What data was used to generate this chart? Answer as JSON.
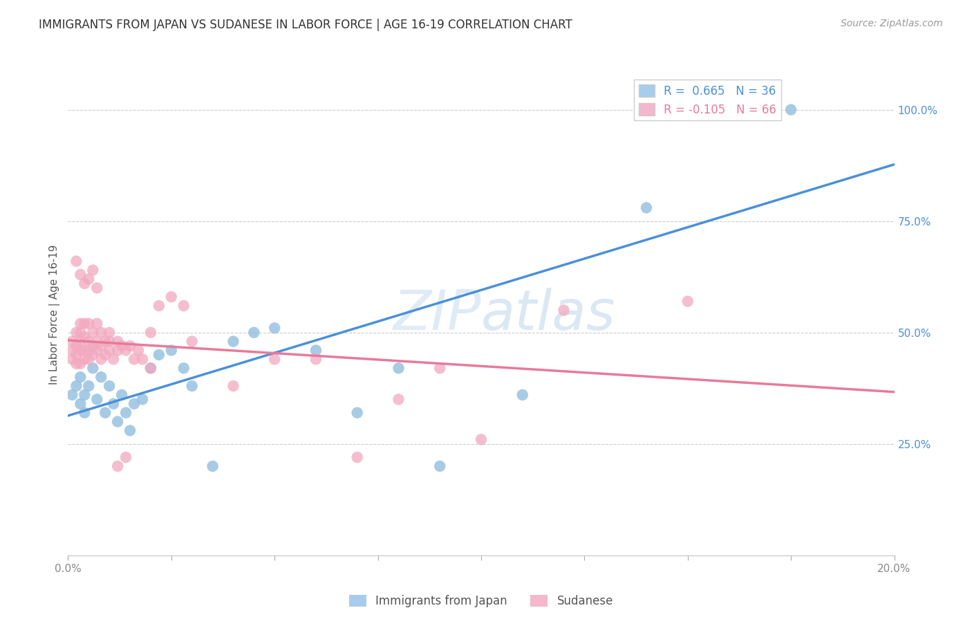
{
  "title": "IMMIGRANTS FROM JAPAN VS SUDANESE IN LABOR FORCE | AGE 16-19 CORRELATION CHART",
  "source": "Source: ZipAtlas.com",
  "ylabel": "In Labor Force | Age 16-19",
  "japan_color": "#92bfdf",
  "sudanese_color": "#f2a8bf",
  "japan_line_color": "#4a90d9",
  "sudanese_line_color": "#e87a9a",
  "legend_japan_color": "#a8ccec",
  "legend_sudanese_color": "#f4b8cc",
  "watermark_color": "#c8ddf0",
  "background_color": "#ffffff",
  "grid_color": "#cccccc",
  "xlim": [
    0.0,
    0.2
  ],
  "ylim": [
    0.0,
    1.08
  ],
  "x_ticks": [
    0.0,
    0.025,
    0.05,
    0.075,
    0.1,
    0.125,
    0.15,
    0.175,
    0.2
  ],
  "y_ticks_right": [
    0.25,
    0.5,
    0.75,
    1.0
  ],
  "y_tick_labels_right": [
    "25.0%",
    "50.0%",
    "75.0%",
    "100.0%"
  ],
  "japan_x": [
    0.001,
    0.002,
    0.003,
    0.003,
    0.004,
    0.004,
    0.005,
    0.006,
    0.007,
    0.008,
    0.009,
    0.01,
    0.011,
    0.012,
    0.013,
    0.014,
    0.015,
    0.016,
    0.018,
    0.02,
    0.022,
    0.025,
    0.028,
    0.03,
    0.035,
    0.04,
    0.045,
    0.05,
    0.06,
    0.07,
    0.08,
    0.09,
    0.11,
    0.14,
    0.16,
    0.175
  ],
  "japan_y": [
    0.36,
    0.38,
    0.34,
    0.4,
    0.32,
    0.36,
    0.38,
    0.42,
    0.35,
    0.4,
    0.32,
    0.38,
    0.34,
    0.3,
    0.36,
    0.32,
    0.28,
    0.34,
    0.35,
    0.42,
    0.45,
    0.46,
    0.42,
    0.38,
    0.2,
    0.48,
    0.5,
    0.51,
    0.46,
    0.32,
    0.42,
    0.2,
    0.36,
    0.78,
    1.0,
    1.0
  ],
  "sudanese_x": [
    0.001,
    0.001,
    0.001,
    0.002,
    0.002,
    0.002,
    0.002,
    0.003,
    0.003,
    0.003,
    0.003,
    0.003,
    0.004,
    0.004,
    0.004,
    0.004,
    0.005,
    0.005,
    0.005,
    0.005,
    0.006,
    0.006,
    0.006,
    0.007,
    0.007,
    0.007,
    0.008,
    0.008,
    0.008,
    0.009,
    0.009,
    0.01,
    0.01,
    0.01,
    0.011,
    0.012,
    0.012,
    0.013,
    0.014,
    0.015,
    0.016,
    0.017,
    0.018,
    0.02,
    0.022,
    0.025,
    0.028,
    0.03,
    0.04,
    0.05,
    0.06,
    0.07,
    0.08,
    0.09,
    0.1,
    0.12,
    0.15,
    0.002,
    0.003,
    0.004,
    0.005,
    0.006,
    0.007,
    0.012,
    0.014,
    0.02
  ],
  "sudanese_y": [
    0.44,
    0.46,
    0.48,
    0.43,
    0.45,
    0.47,
    0.5,
    0.43,
    0.46,
    0.48,
    0.5,
    0.52,
    0.44,
    0.46,
    0.49,
    0.52,
    0.44,
    0.46,
    0.48,
    0.52,
    0.45,
    0.47,
    0.5,
    0.46,
    0.48,
    0.52,
    0.44,
    0.47,
    0.5,
    0.45,
    0.48,
    0.46,
    0.48,
    0.5,
    0.44,
    0.46,
    0.48,
    0.47,
    0.46,
    0.47,
    0.44,
    0.46,
    0.44,
    0.5,
    0.56,
    0.58,
    0.56,
    0.48,
    0.38,
    0.44,
    0.44,
    0.22,
    0.35,
    0.42,
    0.26,
    0.55,
    0.57,
    0.66,
    0.63,
    0.61,
    0.62,
    0.64,
    0.6,
    0.2,
    0.22,
    0.42
  ]
}
